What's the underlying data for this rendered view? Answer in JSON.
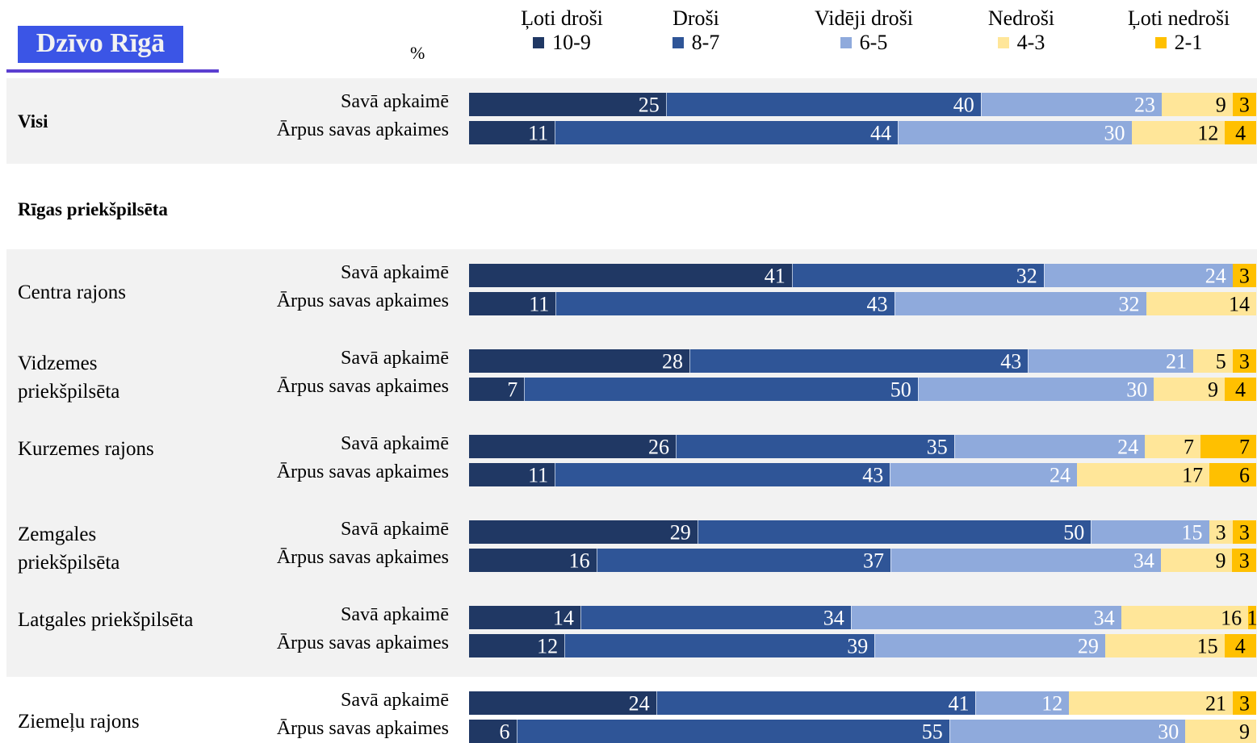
{
  "branding": {
    "logo_text": "Dzīvo Rīgā"
  },
  "chart_data": {
    "type": "bar",
    "orientation": "horizontal",
    "stacked": true,
    "unit_label": "%",
    "legend_placement": "top",
    "legend": [
      {
        "name": "Ļoti droši",
        "range": "10-9",
        "color": "#203864"
      },
      {
        "name": "Droši",
        "range": "8-7",
        "color": "#2f5597"
      },
      {
        "name": "Vidēji droši",
        "range": "6-5",
        "color": "#8faadc"
      },
      {
        "name": "Nedroši",
        "range": "4-3",
        "color": "#ffe699"
      },
      {
        "name": "Ļoti nedroši",
        "range": "2-1",
        "color": "#ffc000"
      }
    ],
    "section_title": "Rīgas priekšpilsēta",
    "groups": [
      {
        "label": "Visi",
        "bold": true,
        "rows": [
          {
            "label": "Savā apkaimē",
            "values": [
              25,
              40,
              23,
              9,
              3
            ]
          },
          {
            "label": "Ārpus savas apkaimes",
            "values": [
              11,
              44,
              30,
              12,
              4
            ]
          }
        ]
      },
      {
        "label": "Centra rajons",
        "rows": [
          {
            "label": "Savā apkaimē",
            "values": [
              41,
              32,
              24,
              0,
              3
            ]
          },
          {
            "label": "Ārpus savas apkaimes",
            "values": [
              11,
              43,
              32,
              14,
              0
            ]
          }
        ]
      },
      {
        "label": "Vidzemes priekšpilsēta",
        "rows": [
          {
            "label": "Savā apkaimē",
            "values": [
              28,
              43,
              21,
              5,
              3
            ]
          },
          {
            "label": "Ārpus savas apkaimes",
            "values": [
              7,
              50,
              30,
              9,
              4
            ]
          }
        ]
      },
      {
        "label": "Kurzemes rajons",
        "rows": [
          {
            "label": "Savā apkaimē",
            "values": [
              26,
              35,
              24,
              7,
              7
            ]
          },
          {
            "label": "Ārpus savas apkaimes",
            "values": [
              11,
              43,
              24,
              17,
              6
            ]
          }
        ]
      },
      {
        "label": "Zemgales priekšpilsēta",
        "rows": [
          {
            "label": "Savā apkaimē",
            "values": [
              29,
              50,
              15,
              3,
              3
            ]
          },
          {
            "label": "Ārpus savas apkaimes",
            "values": [
              16,
              37,
              34,
              9,
              3
            ]
          }
        ]
      },
      {
        "label": "Latgales priekšpilsēta",
        "rows": [
          {
            "label": "Savā apkaimē",
            "values": [
              14,
              34,
              34,
              16,
              1
            ]
          },
          {
            "label": "Ārpus savas apkaimes",
            "values": [
              12,
              39,
              29,
              15,
              4
            ]
          }
        ]
      },
      {
        "label": "Ziemeļu rajons",
        "rows": [
          {
            "label": "Savā apkaimē",
            "values": [
              24,
              41,
              12,
              21,
              3
            ]
          },
          {
            "label": "Ārpus savas apkaimes",
            "values": [
              6,
              55,
              30,
              9,
              0
            ]
          }
        ]
      }
    ]
  }
}
